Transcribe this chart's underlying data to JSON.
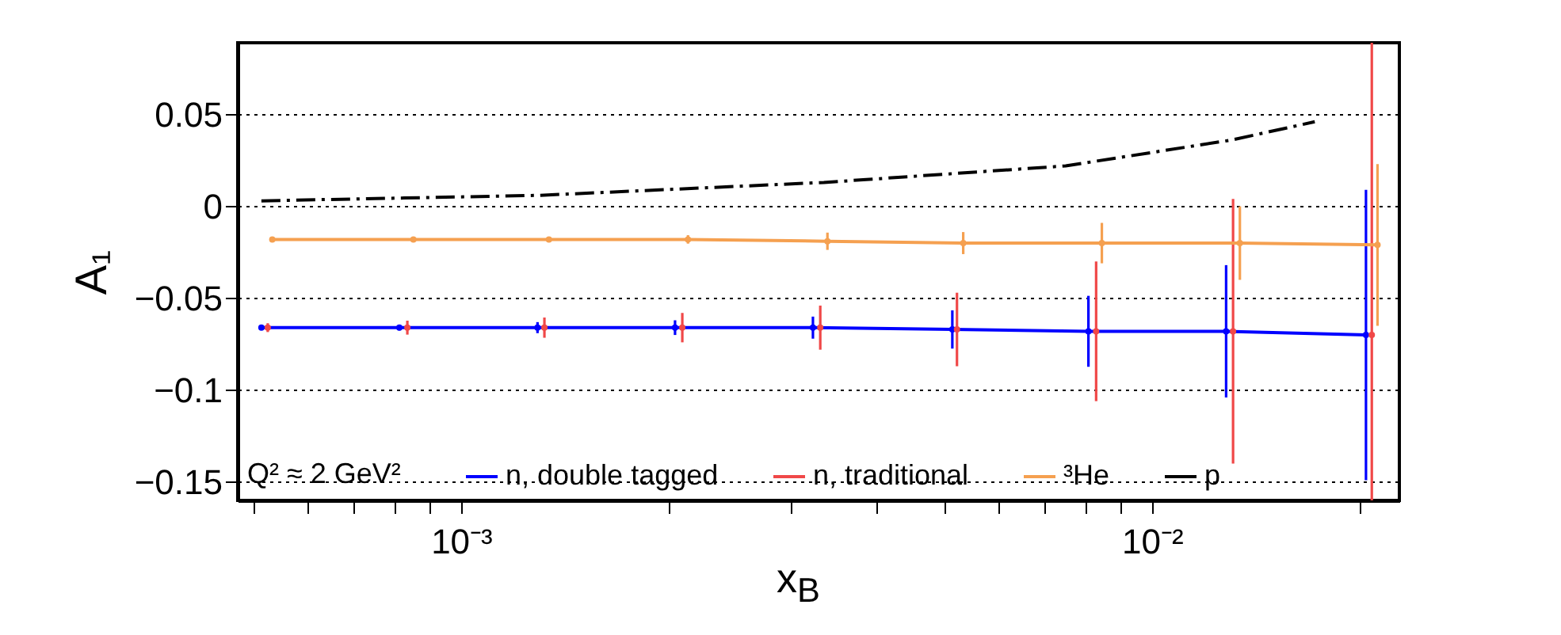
{
  "chart_data": {
    "type": "line",
    "xlabel": "x$_{B}$",
    "ylabel": "A₁",
    "legend_title": "Q² ≈ 2 GeV²",
    "legend": "bottom",
    "log": "x",
    "grid": "y",
    "marker": "circle",
    "xlim": [
      0.000475,
      0.0228
    ],
    "ylim": [
      -0.16,
      0.089
    ],
    "xticks": [
      {
        "value": 0.0005,
        "label": null
      },
      {
        "value": 0.0006,
        "label": null
      },
      {
        "value": 0.0007,
        "label": null
      },
      {
        "value": 0.0008,
        "label": null
      },
      {
        "value": 0.0009,
        "label": null
      },
      {
        "value": 0.001,
        "label": "10⁻³"
      },
      {
        "value": 0.002,
        "label": null
      },
      {
        "value": 0.003,
        "label": null
      },
      {
        "value": 0.004,
        "label": null
      },
      {
        "value": 0.005,
        "label": null
      },
      {
        "value": 0.006,
        "label": null
      },
      {
        "value": 0.007,
        "label": null
      },
      {
        "value": 0.008,
        "label": null
      },
      {
        "value": 0.009,
        "label": null
      },
      {
        "value": 0.01,
        "label": "10⁻²"
      },
      {
        "value": 0.02,
        "label": null
      }
    ],
    "yticks": [
      -0.15,
      -0.1,
      -0.05,
      0,
      0.05
    ],
    "series": [
      {
        "name": "n, double tagged",
        "color": "#0000ff",
        "x": [
          0.000514,
          0.000814,
          0.00129,
          0.00204,
          0.00323,
          0.00514,
          0.00809,
          0.0128,
          0.0204
        ],
        "values": [
          -0.066,
          -0.066,
          -0.066,
          -0.066,
          -0.066,
          -0.067,
          -0.068,
          -0.068,
          -0.07
        ],
        "errors": [
          0.001,
          0.0015,
          0.003,
          0.004,
          0.006,
          0.0104,
          0.0193,
          0.036,
          0.079
        ]
      },
      {
        "name": "n, traditional",
        "type": "scatter",
        "color": "#f04848",
        "x": [
          0.000525,
          0.000836,
          0.00132,
          0.00209,
          0.00331,
          0.00522,
          0.0083,
          0.0131,
          0.0208
        ],
        "values": [
          -0.066,
          -0.066,
          -0.066,
          -0.066,
          -0.066,
          -0.067,
          -0.068,
          -0.068,
          -0.07
        ],
        "errors": [
          0.0024,
          0.0038,
          0.0055,
          0.008,
          0.012,
          0.02,
          0.038,
          0.072,
          [
            -0.16,
            0.089
          ]
        ]
      },
      {
        "name": "³He",
        "color": "#f5a050",
        "x": [
          0.000533,
          0.000853,
          0.00134,
          0.00213,
          0.00339,
          0.00533,
          0.00846,
          0.0134,
          0.0212
        ],
        "values": [
          -0.018,
          -0.018,
          -0.018,
          -0.018,
          -0.019,
          -0.02,
          -0.02,
          -0.02,
          -0.021
        ],
        "errors": [
          0.0005,
          0.0005,
          0.0014,
          0.0023,
          0.0047,
          0.006,
          0.011,
          0.02,
          0.044
        ]
      },
      {
        "name": "p",
        "color": "#000000",
        "marker": "none",
        "line_style": "dashed",
        "x": [
          0.000514,
          0.0013,
          0.00335,
          0.0075,
          0.013,
          0.0172
        ],
        "values": [
          0.003,
          0.006,
          0.013,
          0.022,
          0.036,
          0.046
        ]
      }
    ]
  }
}
